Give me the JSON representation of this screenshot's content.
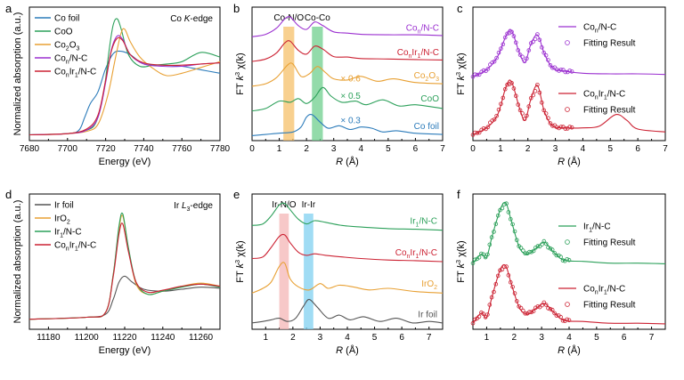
{
  "chart_data": [
    {
      "panel": "a",
      "type": "line",
      "title": "Co K-edge",
      "xlabel": "Energy (eV)",
      "ylabel": "Normalized absorption (a.u.)",
      "xlim": [
        7680,
        7780
      ],
      "xticks": [
        "7680",
        "7700",
        "7720",
        "7740",
        "7760",
        "7780"
      ],
      "series": [
        {
          "name": "Co foil",
          "color": "#2b7bba",
          "x": [
            7680,
            7700,
            7706,
            7709,
            7712,
            7716,
            7720,
            7724,
            7728,
            7733,
            7740,
            7750,
            7760,
            7770,
            7780
          ],
          "y": [
            0.05,
            0.06,
            0.09,
            0.2,
            0.32,
            0.42,
            0.62,
            0.75,
            0.77,
            0.74,
            0.66,
            0.65,
            0.64,
            0.61,
            0.58
          ]
        },
        {
          "name": "CoO",
          "color": "#2ca05a",
          "x": [
            7680,
            7700,
            7710,
            7715,
            7719,
            7722,
            7724,
            7726,
            7728,
            7732,
            7738,
            7745,
            7752,
            7760,
            7770,
            7780
          ],
          "y": [
            0.05,
            0.06,
            0.09,
            0.16,
            0.42,
            0.8,
            1.0,
            1.05,
            0.97,
            0.74,
            0.64,
            0.65,
            0.66,
            0.68,
            0.76,
            0.72
          ]
        },
        {
          "name": "Co2O3",
          "color": "#e8a033",
          "x": [
            7680,
            7700,
            7710,
            7716,
            7721,
            7725,
            7728,
            7730,
            7733,
            7738,
            7745,
            7752,
            7760,
            7770,
            7780
          ],
          "y": [
            0.05,
            0.06,
            0.08,
            0.14,
            0.38,
            0.7,
            0.92,
            0.96,
            0.85,
            0.72,
            0.62,
            0.56,
            0.58,
            0.63,
            0.68
          ]
        },
        {
          "name": "Con/N-C",
          "color": "#9b30d0",
          "x": [
            7680,
            7700,
            7710,
            7716,
            7720,
            7723,
            7726,
            7729,
            7733,
            7740,
            7750,
            7760,
            7770,
            7780
          ],
          "y": [
            0.05,
            0.06,
            0.09,
            0.2,
            0.5,
            0.78,
            0.9,
            0.87,
            0.74,
            0.66,
            0.64,
            0.64,
            0.66,
            0.67
          ]
        },
        {
          "name": "ConIr1/N-C",
          "color": "#cc2233",
          "x": [
            7680,
            7700,
            7710,
            7716,
            7720,
            7723,
            7726,
            7729,
            7733,
            7740,
            7750,
            7760,
            7770,
            7780
          ],
          "y": [
            0.05,
            0.06,
            0.1,
            0.22,
            0.52,
            0.77,
            0.88,
            0.86,
            0.74,
            0.67,
            0.65,
            0.65,
            0.66,
            0.67
          ]
        }
      ],
      "legend": [
        "Co foil",
        "CoO",
        "Co2O3",
        "Con/N-C",
        "ConIr1/N-C"
      ]
    },
    {
      "panel": "b",
      "type": "line",
      "xlabel": "R (Å)",
      "ylabel": "FT k3 χ(k)",
      "xlim": [
        0,
        7
      ],
      "xticks": [
        "0",
        "1",
        "2",
        "3",
        "4",
        "5",
        "6",
        "7"
      ],
      "bands": [
        {
          "label": "Co-N/O",
          "from": 1.15,
          "to": 1.55,
          "color": "#f5c06a"
        },
        {
          "label": "Co-Co",
          "from": 2.2,
          "to": 2.6,
          "color": "#6fcf8e"
        }
      ],
      "series": [
        {
          "name": "Con/N-C",
          "label": "Con/N-C",
          "color": "#9b30d0",
          "offset": 4,
          "x": [
            0,
            0.5,
            0.9,
            1.2,
            1.4,
            1.7,
            2.0,
            2.3,
            2.6,
            3.0,
            3.5,
            4.0,
            5.0,
            6.0,
            7.0
          ],
          "y": [
            0.0,
            0.1,
            0.35,
            0.72,
            0.8,
            0.45,
            0.3,
            0.6,
            0.45,
            0.2,
            0.15,
            0.1,
            0.08,
            0.08,
            0.05
          ]
        },
        {
          "name": "ConIr1/N-C",
          "label": "ConIr1/N-C",
          "color": "#cc2233",
          "offset": 3,
          "x": [
            0,
            0.5,
            0.9,
            1.2,
            1.4,
            1.7,
            2.0,
            2.3,
            2.6,
            3.0,
            3.5,
            4.0,
            5.0,
            6.0,
            7.0
          ],
          "y": [
            0.0,
            0.1,
            0.35,
            0.75,
            0.82,
            0.45,
            0.3,
            0.62,
            0.5,
            0.2,
            0.18,
            0.12,
            0.1,
            0.08,
            0.06
          ]
        },
        {
          "name": "Co2O3",
          "label": "Co2O3",
          "color": "#e8a033",
          "offset": 2,
          "multiplier": "× 0.6",
          "x": [
            0,
            0.5,
            0.9,
            1.3,
            1.5,
            1.8,
            2.1,
            2.4,
            2.7,
            3.0,
            3.5,
            4.0,
            4.6,
            5.2,
            6.0,
            7.0
          ],
          "y": [
            0.0,
            0.1,
            0.35,
            0.85,
            0.9,
            0.4,
            0.5,
            0.8,
            0.55,
            0.3,
            0.25,
            0.4,
            0.2,
            0.3,
            0.15,
            0.1
          ]
        },
        {
          "name": "CoO",
          "label": "CoO",
          "color": "#2ca05a",
          "offset": 1,
          "multiplier": "× 0.5",
          "x": [
            0,
            0.5,
            1.0,
            1.4,
            1.7,
            2.0,
            2.3,
            2.6,
            2.9,
            3.3,
            3.8,
            4.2,
            4.8,
            5.4,
            6.0,
            7.0
          ],
          "y": [
            0.0,
            0.1,
            0.4,
            0.35,
            0.5,
            0.3,
            0.55,
            0.95,
            0.6,
            0.35,
            0.4,
            0.25,
            0.45,
            0.2,
            0.25,
            0.1
          ]
        },
        {
          "name": "Co foil",
          "label": "Co foil",
          "color": "#2b7bba",
          "offset": 0,
          "multiplier": "× 0.3",
          "x": [
            0,
            0.5,
            1.0,
            1.5,
            1.8,
            2.0,
            2.2,
            2.5,
            2.8,
            3.2,
            3.6,
            4.0,
            4.4,
            4.8,
            5.3,
            6.0,
            7.0
          ],
          "y": [
            0.0,
            0.05,
            0.1,
            0.15,
            0.35,
            0.75,
            0.85,
            0.55,
            0.3,
            0.4,
            0.25,
            0.35,
            0.3,
            0.15,
            0.2,
            0.1,
            0.05
          ]
        }
      ]
    },
    {
      "panel": "c",
      "type": "line",
      "xlabel": "R (Å)",
      "ylabel": "FT k3 χ(k)",
      "xlim": [
        0,
        7
      ],
      "xticks": [
        "0",
        "1",
        "2",
        "3",
        "4",
        "5",
        "6",
        "7"
      ],
      "series": [
        {
          "name": "Con/N-C",
          "color": "#9b30d0",
          "offset": 1,
          "x": [
            0,
            0.5,
            0.9,
            1.2,
            1.4,
            1.7,
            1.9,
            2.1,
            2.35,
            2.6,
            2.9,
            3.3,
            4.0,
            5.0,
            6.0,
            7.0
          ],
          "y": [
            0.0,
            0.12,
            0.35,
            0.7,
            0.8,
            0.4,
            0.25,
            0.55,
            0.72,
            0.4,
            0.15,
            0.1,
            0.06,
            0.05,
            0.05,
            0.04
          ]
        },
        {
          "name": "ConIr1/N-C",
          "color": "#cc2233",
          "offset": 0,
          "x": [
            0,
            0.5,
            0.9,
            1.2,
            1.4,
            1.7,
            1.9,
            2.1,
            2.35,
            2.6,
            2.9,
            3.3,
            4.0,
            4.6,
            5.2,
            5.6,
            6.0,
            7.0
          ],
          "y": [
            0.0,
            0.12,
            0.35,
            0.82,
            0.92,
            0.45,
            0.25,
            0.6,
            0.85,
            0.4,
            0.15,
            0.12,
            0.12,
            0.15,
            0.35,
            0.25,
            0.1,
            0.05
          ]
        }
      ],
      "legend": [
        {
          "label": "Con/N-C",
          "fit_label": "Fitting Result"
        },
        {
          "label": "ConIr1/N-C",
          "fit_label": "Fitting Result"
        }
      ]
    },
    {
      "panel": "d",
      "type": "line",
      "title": "Ir L3-edge",
      "xlabel": "Energy (eV)",
      "ylabel": "Normalized absorption (a.u.)",
      "xlim": [
        11170,
        11270
      ],
      "xticks": [
        "11180",
        "11200",
        "11220",
        "11240",
        "11260"
      ],
      "series": [
        {
          "name": "Ir foil",
          "color": "#555555",
          "x": [
            11170,
            11200,
            11210,
            11214,
            11217,
            11220,
            11224,
            11230,
            11240,
            11250,
            11260,
            11270
          ],
          "y": [
            0.05,
            0.07,
            0.1,
            0.25,
            0.42,
            0.48,
            0.42,
            0.35,
            0.33,
            0.35,
            0.37,
            0.36
          ]
        },
        {
          "name": "IrO2",
          "color": "#e8a033",
          "x": [
            11170,
            11200,
            11210,
            11214,
            11217,
            11219,
            11222,
            11226,
            11232,
            11240,
            11250,
            11260,
            11270
          ],
          "y": [
            0.05,
            0.07,
            0.12,
            0.5,
            0.95,
            1.08,
            0.75,
            0.4,
            0.3,
            0.33,
            0.38,
            0.41,
            0.38
          ]
        },
        {
          "name": "Ir1/N-C",
          "color": "#2ca05a",
          "x": [
            11170,
            11200,
            11210,
            11214,
            11217,
            11219,
            11222,
            11226,
            11232,
            11240,
            11250,
            11260,
            11270
          ],
          "y": [
            0.05,
            0.07,
            0.12,
            0.5,
            0.98,
            1.1,
            0.76,
            0.42,
            0.3,
            0.33,
            0.37,
            0.4,
            0.37
          ]
        },
        {
          "name": "ConIr1/N-C",
          "color": "#cc2233",
          "x": [
            11170,
            11200,
            11210,
            11214,
            11217,
            11219,
            11222,
            11226,
            11232,
            11240,
            11250,
            11260,
            11270
          ],
          "y": [
            0.05,
            0.07,
            0.12,
            0.48,
            0.9,
            1.0,
            0.72,
            0.42,
            0.32,
            0.34,
            0.38,
            0.4,
            0.38
          ]
        }
      ],
      "legend": [
        "Ir foil",
        "IrO2",
        "Ir1/N-C",
        "ConIr1/N-C"
      ]
    },
    {
      "panel": "e",
      "type": "line",
      "xlabel": "R (Å)",
      "ylabel": "FT k3 χ(k)",
      "xlim": [
        0.5,
        7.5
      ],
      "xticks": [
        "1",
        "2",
        "3",
        "4",
        "5",
        "6",
        "7"
      ],
      "bands": [
        {
          "label": "Ir-N/O",
          "from": 1.5,
          "to": 1.85,
          "color": "#f4b6b6"
        },
        {
          "label": "Ir-Ir",
          "from": 2.4,
          "to": 2.75,
          "color": "#80d0f0"
        }
      ],
      "series": [
        {
          "name": "Ir1/N-C",
          "label": "Ir1/N-C",
          "color": "#2ca05a",
          "offset": 3,
          "x": [
            0.5,
            0.9,
            1.2,
            1.5,
            1.7,
            1.9,
            2.2,
            2.5,
            2.8,
            3.2,
            3.8,
            4.5,
            5.5,
            6.5,
            7.5
          ],
          "y": [
            0.3,
            0.35,
            0.6,
            0.95,
            1.0,
            0.8,
            0.5,
            0.35,
            0.45,
            0.4,
            0.3,
            0.25,
            0.2,
            0.18,
            0.15
          ]
        },
        {
          "name": "ConIr1/N-C",
          "label": "ConIr1/N-C",
          "color": "#cc2233",
          "offset": 2,
          "x": [
            0.5,
            0.9,
            1.2,
            1.5,
            1.7,
            1.9,
            2.2,
            2.5,
            2.8,
            3.2,
            3.8,
            4.5,
            5.5,
            6.5,
            7.5
          ],
          "y": [
            0.25,
            0.3,
            0.6,
            0.95,
            1.0,
            0.75,
            0.45,
            0.35,
            0.4,
            0.35,
            0.3,
            0.25,
            0.2,
            0.18,
            0.15
          ]
        },
        {
          "name": "IrO2",
          "label": "IrO2",
          "color": "#e8a033",
          "offset": 1,
          "x": [
            0.5,
            0.9,
            1.2,
            1.5,
            1.7,
            1.9,
            2.2,
            2.6,
            3.0,
            3.3,
            3.7,
            4.2,
            4.8,
            5.5,
            6.5,
            7.5
          ],
          "y": [
            0.15,
            0.3,
            0.5,
            1.0,
            1.1,
            0.6,
            0.35,
            0.25,
            0.45,
            0.3,
            0.4,
            0.35,
            0.25,
            0.3,
            0.2,
            0.15
          ]
        },
        {
          "name": "Ir foil",
          "label": "Ir foil",
          "color": "#555555",
          "offset": 0,
          "x": [
            0.5,
            0.9,
            1.2,
            1.5,
            1.8,
            2.1,
            2.4,
            2.6,
            2.9,
            3.3,
            3.7,
            4.1,
            4.6,
            5.2,
            5.8,
            6.4,
            7.0,
            7.5
          ],
          "y": [
            0.2,
            0.25,
            0.3,
            0.35,
            0.25,
            0.35,
            0.75,
            0.95,
            0.7,
            0.35,
            0.45,
            0.3,
            0.4,
            0.25,
            0.35,
            0.2,
            0.25,
            0.2
          ]
        }
      ]
    },
    {
      "panel": "f",
      "type": "line",
      "xlabel": "R (Å)",
      "ylabel": "FT k3 χ(k)",
      "xlim": [
        0.5,
        7.5
      ],
      "xticks": [
        "1",
        "2",
        "3",
        "4",
        "5",
        "6",
        "7"
      ],
      "series": [
        {
          "name": "Ir1/N-C",
          "color": "#2ca05a",
          "offset": 1,
          "x": [
            0.5,
            0.8,
            1.0,
            1.2,
            1.5,
            1.7,
            1.9,
            2.2,
            2.5,
            2.8,
            3.1,
            3.4,
            3.8,
            4.5,
            5.5,
            6.5,
            7.5
          ],
          "y": [
            0.05,
            0.2,
            0.15,
            0.5,
            0.95,
            1.05,
            0.75,
            0.3,
            0.2,
            0.3,
            0.4,
            0.25,
            0.1,
            0.08,
            0.05,
            0.05,
            0.04
          ]
        },
        {
          "name": "ConIr1/N-C",
          "color": "#cc2233",
          "offset": 0,
          "x": [
            0.5,
            0.8,
            1.0,
            1.2,
            1.5,
            1.7,
            1.9,
            2.2,
            2.5,
            2.8,
            3.1,
            3.4,
            3.8,
            4.5,
            5.5,
            6.5,
            7.5
          ],
          "y": [
            0.05,
            0.22,
            0.15,
            0.5,
            0.95,
            1.0,
            0.7,
            0.3,
            0.2,
            0.3,
            0.38,
            0.25,
            0.1,
            0.08,
            0.05,
            0.05,
            0.04
          ]
        }
      ],
      "legend": [
        {
          "label": "Ir1/N-C",
          "fit_label": "Fitting Result"
        },
        {
          "label": "ConIr1/N-C",
          "fit_label": "Fitting Result"
        }
      ]
    }
  ],
  "text": {
    "a": {
      "letter": "a",
      "edge_prefix": "Co ",
      "edge_main": "K",
      "edge_suffix": "-edge",
      "xlabel": "Energy (eV)",
      "ylabel": "Normalized absorption (a.u.)"
    },
    "b": {
      "letter": "b",
      "ylabel_prefix": "FT ",
      "ylabel_k": "k",
      "ylabel_exp": "3",
      "ylabel_suffix": " χ(k)",
      "xlabel_R": "R",
      "xlabel_unit": " (Å)"
    },
    "c": {
      "letter": "c"
    },
    "d": {
      "letter": "d",
      "edge_prefix": "Ir ",
      "edge_main": "L",
      "edge_sub": "3",
      "edge_suffix": "-edge",
      "xlabel": "Energy (eV)",
      "ylabel": "Normalized absorption (a.u.)"
    },
    "e": {
      "letter": "e"
    },
    "f": {
      "letter": "f"
    }
  }
}
